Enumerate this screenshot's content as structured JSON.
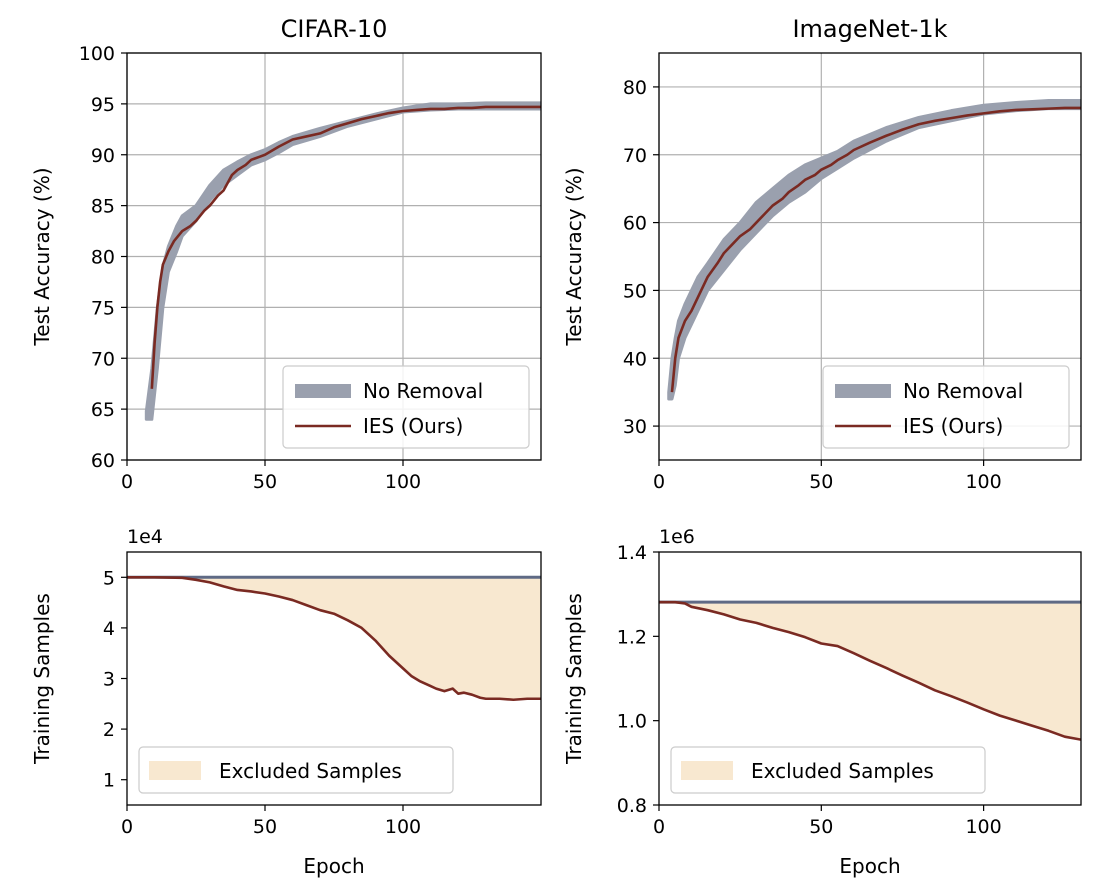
{
  "colors": {
    "band": "#9aa0ae",
    "ies_line": "#7a2a22",
    "baseline_line": "#5f6a85",
    "excluded_fill": "#f8e8d0",
    "grid": "#b0b0b0"
  },
  "chart_data": [
    {
      "id": "cifar_acc",
      "type": "line",
      "title": "CIFAR-10",
      "xlabel": "",
      "ylabel": "Test Accuracy (%)",
      "xlim": [
        0,
        150
      ],
      "ylim": [
        60,
        100
      ],
      "xticks": [
        0,
        50,
        100
      ],
      "yticks": [
        60,
        65,
        70,
        75,
        80,
        85,
        90,
        95,
        100
      ],
      "grid": true,
      "legend": {
        "placement": "lower-right",
        "entries": [
          "No Removal",
          "IES (Ours)"
        ]
      },
      "series": [
        {
          "name": "No Removal",
          "style": "band",
          "x": [
            7,
            9,
            11,
            13,
            15,
            18,
            20,
            25,
            30,
            35,
            40,
            45,
            50,
            55,
            60,
            70,
            80,
            90,
            100,
            110,
            120,
            130,
            140,
            150
          ],
          "lower": [
            64,
            64,
            69,
            75,
            78.5,
            80.5,
            82,
            83.5,
            85.5,
            87,
            88,
            89,
            89.5,
            90.2,
            91,
            91.8,
            92.8,
            93.5,
            94.2,
            94.4,
            94.5,
            94.5,
            94.5,
            94.5
          ],
          "upper": [
            64.8,
            69,
            75,
            79,
            81,
            83,
            84,
            85,
            87,
            88.5,
            89.3,
            90,
            90.5,
            91.2,
            91.8,
            92.6,
            93.3,
            94,
            94.6,
            95,
            95,
            95.1,
            95.1,
            95.1
          ]
        },
        {
          "name": "IES (Ours)",
          "style": "line",
          "x": [
            9,
            10,
            11,
            12,
            13,
            15,
            17,
            20,
            23,
            25,
            28,
            30,
            33,
            35,
            38,
            40,
            43,
            45,
            48,
            50,
            55,
            60,
            65,
            70,
            75,
            80,
            85,
            90,
            95,
            100,
            105,
            110,
            115,
            120,
            125,
            130,
            135,
            140,
            145,
            150
          ],
          "values": [
            67,
            71.5,
            75,
            77.5,
            79.2,
            80.5,
            81.5,
            82.5,
            83,
            83.5,
            84.5,
            85,
            86,
            86.5,
            88,
            88.5,
            89,
            89.5,
            89.8,
            90,
            90.8,
            91.5,
            91.8,
            92.1,
            92.7,
            93.1,
            93.5,
            93.8,
            94.1,
            94.3,
            94.4,
            94.5,
            94.5,
            94.6,
            94.6,
            94.7,
            94.7,
            94.7,
            94.7,
            94.7
          ]
        }
      ]
    },
    {
      "id": "imagenet_acc",
      "type": "line",
      "title": "ImageNet-1k",
      "xlabel": "",
      "ylabel": "Test Accuracy (%)",
      "xlim": [
        0,
        130
      ],
      "ylim": [
        25,
        85
      ],
      "xticks": [
        0,
        50,
        100
      ],
      "yticks": [
        30,
        40,
        50,
        60,
        70,
        80
      ],
      "grid": true,
      "legend": {
        "placement": "lower-right",
        "entries": [
          "No Removal",
          "IES (Ours)"
        ]
      },
      "series": [
        {
          "name": "No Removal",
          "style": "band",
          "x": [
            3,
            4,
            5,
            6,
            8,
            10,
            12,
            15,
            20,
            25,
            30,
            35,
            40,
            45,
            50,
            55,
            60,
            70,
            80,
            90,
            100,
            110,
            120,
            130
          ],
          "lower": [
            34,
            34,
            36,
            40,
            43,
            45,
            47,
            50,
            53,
            56,
            58.5,
            61,
            63,
            64.5,
            66.5,
            68,
            69.5,
            72,
            74,
            75,
            76,
            76.5,
            76.8,
            76.8
          ],
          "upper": [
            35,
            40,
            43,
            45.5,
            48,
            50,
            52,
            54,
            57.5,
            60,
            63,
            65,
            67,
            68.5,
            69.5,
            70.5,
            72,
            74,
            75.5,
            76.5,
            77.3,
            77.7,
            78,
            78
          ]
        },
        {
          "name": "IES (Ours)",
          "style": "line",
          "x": [
            4,
            5,
            6,
            8,
            10,
            12,
            15,
            18,
            20,
            23,
            25,
            28,
            30,
            33,
            35,
            38,
            40,
            43,
            45,
            48,
            50,
            53,
            55,
            58,
            60,
            65,
            70,
            75,
            80,
            85,
            90,
            95,
            100,
            105,
            110,
            115,
            120,
            125,
            130
          ],
          "values": [
            35,
            40,
            43,
            45.5,
            47,
            49,
            52,
            54,
            55.5,
            57,
            58,
            59,
            60,
            61.5,
            62.5,
            63.5,
            64.5,
            65.5,
            66.3,
            67,
            67.8,
            68.5,
            69.2,
            70,
            70.7,
            71.8,
            72.8,
            73.7,
            74.5,
            75,
            75.4,
            75.8,
            76.1,
            76.4,
            76.6,
            76.7,
            76.8,
            76.9,
            76.9
          ]
        }
      ]
    },
    {
      "id": "cifar_samples",
      "type": "area",
      "title": "",
      "xlabel": "Epoch",
      "ylabel": "Training Samples",
      "exponent_label": "1e4",
      "xlim": [
        0,
        150
      ],
      "ylim": [
        0.5,
        5.5
      ],
      "xticks": [
        0,
        50,
        100
      ],
      "yticks": [
        1,
        2,
        3,
        4,
        5
      ],
      "grid": false,
      "legend": {
        "placement": "lower-left",
        "entries": [
          "Excluded Samples"
        ]
      },
      "series": [
        {
          "name": "No Removal",
          "style": "line",
          "x": [
            0,
            150
          ],
          "values": [
            5,
            5
          ]
        },
        {
          "name": "IES (Ours)",
          "style": "line",
          "x": [
            0,
            10,
            20,
            25,
            30,
            35,
            40,
            45,
            50,
            55,
            60,
            65,
            70,
            75,
            80,
            85,
            90,
            95,
            100,
            103,
            106,
            110,
            112,
            115,
            118,
            120,
            122,
            125,
            128,
            130,
            135,
            140,
            145,
            150
          ],
          "values": [
            5,
            5,
            4.99,
            4.95,
            4.9,
            4.82,
            4.75,
            4.72,
            4.68,
            4.62,
            4.55,
            4.45,
            4.35,
            4.28,
            4.15,
            4.0,
            3.75,
            3.45,
            3.2,
            3.05,
            2.95,
            2.85,
            2.8,
            2.75,
            2.8,
            2.7,
            2.72,
            2.68,
            2.62,
            2.6,
            2.6,
            2.58,
            2.6,
            2.6
          ]
        }
      ],
      "fill_between": {
        "name": "Excluded Samples",
        "upper": "No Removal",
        "lower": "IES (Ours)"
      }
    },
    {
      "id": "imagenet_samples",
      "type": "area",
      "title": "",
      "xlabel": "Epoch",
      "ylabel": "Training Samples",
      "exponent_label": "1e6",
      "xlim": [
        0,
        130
      ],
      "ylim": [
        0.8,
        1.4
      ],
      "xticks": [
        0,
        50,
        100
      ],
      "yticks": [
        0.8,
        1.0,
        1.2,
        1.4
      ],
      "ytick_labels": [
        "0.8",
        "1.0",
        "1.2",
        "1.4"
      ],
      "grid": false,
      "legend": {
        "placement": "lower-left",
        "entries": [
          "Excluded Samples"
        ]
      },
      "series": [
        {
          "name": "No Removal",
          "style": "line",
          "x": [
            0,
            130
          ],
          "values": [
            1.281,
            1.281
          ]
        },
        {
          "name": "IES (Ours)",
          "style": "line",
          "x": [
            0,
            5,
            8,
            10,
            15,
            20,
            25,
            30,
            35,
            40,
            45,
            50,
            55,
            60,
            65,
            70,
            75,
            80,
            85,
            90,
            95,
            100,
            105,
            110,
            115,
            120,
            125,
            130
          ],
          "values": [
            1.281,
            1.281,
            1.278,
            1.27,
            1.262,
            1.252,
            1.24,
            1.232,
            1.22,
            1.21,
            1.198,
            1.183,
            1.177,
            1.16,
            1.142,
            1.125,
            1.107,
            1.09,
            1.072,
            1.058,
            1.043,
            1.027,
            1.012,
            1.0,
            0.988,
            0.976,
            0.962,
            0.955
          ]
        }
      ],
      "fill_between": {
        "name": "Excluded Samples",
        "upper": "No Removal",
        "lower": "IES (Ours)"
      }
    }
  ]
}
